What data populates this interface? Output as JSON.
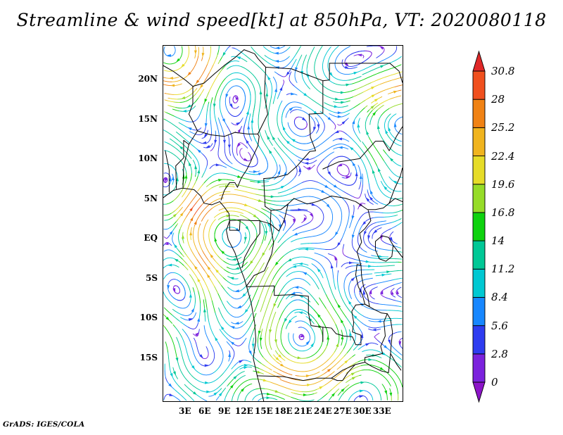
{
  "title": "Streamline & wind speed[kt] at 850hPa, VT: 2020080118",
  "credit": "GrADS: IGES/COLA",
  "chart_data": {
    "type": "streamline",
    "title": "Streamline & wind speed[kt] at 850hPa, VT: 2020080118",
    "variable": "wind speed",
    "units": "kt",
    "pressure_level": "850hPa",
    "valid_time": "2020080118",
    "legend_position": "right",
    "x_axis": {
      "tick_labels": [
        "3E",
        "6E",
        "9E",
        "12E",
        "15E",
        "18E",
        "21E",
        "24E",
        "27E",
        "30E",
        "33E"
      ]
    },
    "y_axis": {
      "tick_labels": [
        "20N",
        "15N",
        "10N",
        "5N",
        "EQ",
        "5S",
        "10S",
        "15S"
      ]
    },
    "colorbar": {
      "labels_top_to_bottom": [
        "30.8",
        "28",
        "25.2",
        "22.4",
        "19.6",
        "16.8",
        "14",
        "11.2",
        "8.4",
        "5.6",
        "2.8",
        "0"
      ],
      "levels_kt": [
        0,
        2.8,
        5.6,
        8.4,
        11.2,
        14,
        16.8,
        19.6,
        22.4,
        25.2,
        28,
        30.8
      ],
      "colors_bottom_to_top": [
        "#8c14c8",
        "#7b22dd",
        "#2e3cf0",
        "#1787ff",
        "#00c8d2",
        "#00c896",
        "#0ed20e",
        "#96dc28",
        "#e6dc28",
        "#f0b41e",
        "#f08214",
        "#f0501e",
        "#e02828"
      ]
    },
    "map_overlay": "national borders and lakes of central Africa (approximate sketch)",
    "map_borders_approx_lonlat": [
      [
        [
          -0.3,
          5.1
        ],
        [
          1.2,
          6.0
        ],
        [
          2.6,
          6.3
        ],
        [
          4.4,
          6.1
        ],
        [
          5.4,
          5.3
        ],
        [
          5.9,
          4.4
        ],
        [
          7.1,
          4.2
        ],
        [
          8.3,
          4.6
        ],
        [
          9.0,
          3.9
        ],
        [
          9.7,
          3.1
        ],
        [
          9.8,
          2.2
        ],
        [
          9.3,
          1.0
        ],
        [
          9.6,
          -0.2
        ],
        [
          10.6,
          -1.8
        ],
        [
          11.3,
          -3.5
        ],
        [
          12.0,
          -5.0
        ],
        [
          12.4,
          -6.1
        ],
        [
          13.1,
          -8.2
        ],
        [
          13.6,
          -10.6
        ],
        [
          13.8,
          -12.8
        ],
        [
          13.4,
          -15.1
        ],
        [
          14.0,
          -17.3
        ],
        [
          14.6,
          -19.2
        ],
        [
          15.0,
          -20.5
        ]
      ],
      [
        [
          0.6,
          5.8
        ],
        [
          0.6,
          8.6
        ],
        [
          0.0,
          11.0
        ]
      ],
      [
        [
          1.7,
          6.2
        ],
        [
          1.6,
          9.1
        ],
        [
          2.8,
          10.1
        ],
        [
          2.8,
          12.3
        ]
      ],
      [
        [
          2.7,
          6.4
        ],
        [
          2.8,
          9.0
        ],
        [
          3.6,
          11.8
        ]
      ],
      [
        [
          2.8,
          12.3
        ],
        [
          3.6,
          11.8
        ],
        [
          4.9,
          13.5
        ],
        [
          6.9,
          13.0
        ],
        [
          9.0,
          12.8
        ],
        [
          10.6,
          13.3
        ],
        [
          12.6,
          13.1
        ],
        [
          14.1,
          13.1
        ]
      ],
      [
        [
          8.5,
          4.8
        ],
        [
          9.0,
          6.0
        ],
        [
          9.8,
          7.0
        ],
        [
          10.6,
          7.0
        ],
        [
          11.0,
          6.4
        ],
        [
          11.6,
          7.6
        ],
        [
          12.4,
          8.6
        ],
        [
          13.0,
          9.6
        ],
        [
          13.3,
          10.2
        ],
        [
          14.1,
          11.6
        ],
        [
          14.3,
          12.8
        ],
        [
          14.1,
          13.1
        ]
      ],
      [
        [
          14.1,
          13.1
        ],
        [
          15.6,
          15.6
        ],
        [
          15.1,
          18.0
        ],
        [
          15.3,
          21.5
        ],
        [
          14.1,
          22.6
        ],
        [
          13.6,
          23.2
        ],
        [
          12.0,
          23.7
        ]
      ],
      [
        [
          15.3,
          21.5
        ],
        [
          19.2,
          21.3
        ],
        [
          24.0,
          19.8
        ],
        [
          25.0,
          19.9
        ],
        [
          25.0,
          22.0
        ]
      ],
      [
        [
          4.2,
          19.1
        ],
        [
          5.9,
          19.5
        ],
        [
          7.4,
          20.6
        ],
        [
          9.1,
          21.8
        ],
        [
          10.6,
          22.7
        ],
        [
          12.0,
          23.7
        ]
      ],
      [
        [
          -0.3,
          21.7
        ],
        [
          1.2,
          21.0
        ],
        [
          3.2,
          19.8
        ],
        [
          4.2,
          19.1
        ],
        [
          4.2,
          16.9
        ],
        [
          3.6,
          15.6
        ],
        [
          4.0,
          15.0
        ],
        [
          4.9,
          13.5
        ]
      ],
      [
        [
          15.0,
          7.5
        ],
        [
          16.6,
          7.6
        ],
        [
          18.6,
          8.0
        ],
        [
          20.1,
          9.1
        ],
        [
          22.0,
          10.9
        ],
        [
          22.9,
          11.0
        ],
        [
          22.1,
          12.7
        ],
        [
          21.9,
          15.6
        ],
        [
          24.0,
          15.7
        ],
        [
          24.0,
          19.8
        ]
      ],
      [
        [
          24.0,
          8.7
        ],
        [
          26.4,
          9.6
        ],
        [
          29.6,
          10.0
        ],
        [
          32.0,
          12.2
        ],
        [
          33.2,
          12.2
        ],
        [
          34.1,
          11.0
        ],
        [
          35.2,
          12.8
        ],
        [
          36.1,
          14.0
        ]
      ],
      [
        [
          15.2,
          4.0
        ],
        [
          16.1,
          3.5
        ],
        [
          17.6,
          3.6
        ],
        [
          18.7,
          4.3
        ],
        [
          19.6,
          5.0
        ],
        [
          21.6,
          4.3
        ],
        [
          23.1,
          4.6
        ],
        [
          25.3,
          5.3
        ],
        [
          26.9,
          5.1
        ],
        [
          27.5,
          5.0
        ]
      ],
      [
        [
          15.0,
          7.5
        ],
        [
          15.2,
          4.0
        ]
      ],
      [
        [
          9.8,
          2.2
        ],
        [
          11.4,
          2.3
        ],
        [
          13.3,
          2.2
        ],
        [
          14.4,
          2.2
        ],
        [
          16.0,
          1.8
        ],
        [
          16.1,
          3.5
        ]
      ],
      [
        [
          9.8,
          2.2
        ],
        [
          9.8,
          1.0
        ],
        [
          11.3,
          1.0
        ],
        [
          11.4,
          2.3
        ]
      ],
      [
        [
          14.4,
          2.2
        ],
        [
          14.4,
          0.6
        ],
        [
          13.0,
          -1.0
        ],
        [
          12.1,
          -2.4
        ],
        [
          11.7,
          -3.7
        ]
      ],
      [
        [
          16.0,
          1.8
        ],
        [
          17.3,
          0.9
        ],
        [
          18.1,
          2.2
        ],
        [
          18.7,
          4.3
        ]
      ],
      [
        [
          16.0,
          1.8
        ],
        [
          16.5,
          -0.6
        ],
        [
          16.2,
          -2.0
        ],
        [
          15.1,
          -4.1
        ],
        [
          13.5,
          -4.7
        ],
        [
          12.4,
          -6.0
        ]
      ],
      [
        [
          12.4,
          -6.1
        ],
        [
          16.6,
          -6.0
        ],
        [
          16.6,
          -7.2
        ],
        [
          19.4,
          -7.1
        ],
        [
          21.8,
          -7.3
        ],
        [
          21.8,
          -9.4
        ],
        [
          22.2,
          -11.0
        ],
        [
          24.0,
          -11.2
        ],
        [
          24.0,
          -13.0
        ]
      ],
      [
        [
          24.0,
          -11.2
        ],
        [
          25.3,
          -11.3
        ],
        [
          26.0,
          -12.0
        ],
        [
          27.2,
          -12.3
        ],
        [
          28.5,
          -12.4
        ],
        [
          29.0,
          -13.4
        ],
        [
          29.8,
          -13.4
        ],
        [
          29.8,
          -12.2
        ],
        [
          28.5,
          -11.8
        ],
        [
          28.7,
          -10.6
        ],
        [
          28.4,
          -9.2
        ],
        [
          29.0,
          -8.4
        ],
        [
          30.4,
          -8.3
        ]
      ],
      [
        [
          29.2,
          -3.3
        ],
        [
          29.0,
          -4.6
        ],
        [
          29.4,
          -6.1
        ],
        [
          30.0,
          -7.1
        ],
        [
          30.4,
          -8.3
        ],
        [
          31.1,
          -8.6
        ],
        [
          30.8,
          -7.2
        ],
        [
          30.2,
          -6.1
        ],
        [
          29.9,
          -4.8
        ],
        [
          29.8,
          -3.4
        ],
        [
          29.2,
          -3.3
        ]
      ],
      [
        [
          29.6,
          0.6
        ],
        [
          29.9,
          -0.5
        ],
        [
          29.2,
          -1.7
        ],
        [
          29.8,
          -3.4
        ]
      ],
      [
        [
          29.6,
          0.6
        ],
        [
          30.4,
          1.2
        ],
        [
          31.3,
          2.2
        ],
        [
          30.9,
          3.5
        ]
      ],
      [
        [
          27.5,
          5.0
        ],
        [
          29.0,
          4.6
        ],
        [
          30.8,
          3.6
        ],
        [
          32.0,
          3.6
        ],
        [
          33.2,
          3.8
        ],
        [
          34.1,
          4.4
        ],
        [
          35.0,
          5.0
        ],
        [
          36.1,
          4.6
        ]
      ],
      [
        [
          32.0,
          -0.4
        ],
        [
          33.0,
          0.3
        ],
        [
          34.0,
          0.1
        ],
        [
          34.7,
          -0.9
        ],
        [
          34.5,
          -2.3
        ],
        [
          33.6,
          -2.9
        ],
        [
          32.6,
          -2.6
        ],
        [
          32.0,
          -1.5
        ],
        [
          32.0,
          -0.4
        ]
      ],
      [
        [
          34.7,
          -0.9
        ],
        [
          36.1,
          -2.4
        ]
      ],
      [
        [
          30.4,
          -8.3
        ],
        [
          31.9,
          -9.0
        ],
        [
          32.9,
          -9.4
        ],
        [
          33.8,
          -9.5
        ]
      ],
      [
        [
          33.8,
          -9.5
        ],
        [
          34.3,
          -10.2
        ],
        [
          34.6,
          -11.8
        ],
        [
          34.4,
          -13.4
        ],
        [
          34.3,
          -14.5
        ],
        [
          35.2,
          -15.8
        ],
        [
          35.9,
          -16.6
        ]
      ],
      [
        [
          33.8,
          -9.5
        ],
        [
          33.3,
          -10.5
        ],
        [
          33.5,
          -12.3
        ],
        [
          32.8,
          -13.6
        ],
        [
          33.1,
          -14.5
        ],
        [
          30.4,
          -15.0
        ],
        [
          30.4,
          -15.6
        ],
        [
          28.9,
          -15.9
        ],
        [
          27.0,
          -16.6
        ],
        [
          25.3,
          -17.6
        ]
      ],
      [
        [
          30.4,
          -15.6
        ],
        [
          31.4,
          -16.1
        ],
        [
          32.9,
          -16.7
        ],
        [
          34.0,
          -16.9
        ]
      ],
      [
        [
          25.0,
          22.0
        ],
        [
          34.2,
          22.0
        ],
        [
          35.6,
          21.0
        ],
        [
          36.1,
          19.6
        ]
      ],
      [
        [
          34.1,
          4.4
        ],
        [
          34.9,
          6.2
        ],
        [
          35.8,
          7.8
        ],
        [
          36.1,
          8.8
        ]
      ],
      [
        [
          14.0,
          -17.3
        ],
        [
          18.0,
          -17.4
        ],
        [
          21.0,
          -17.9
        ],
        [
          23.0,
          -17.6
        ],
        [
          25.3,
          -17.6
        ],
        [
          26.2,
          -17.9
        ],
        [
          27.0,
          -17.9
        ],
        [
          27.8,
          -16.9
        ],
        [
          28.9,
          -15.9
        ]
      ],
      [
        [
          34.3,
          -14.5
        ],
        [
          34.0,
          -16.9
        ]
      ]
    ]
  }
}
